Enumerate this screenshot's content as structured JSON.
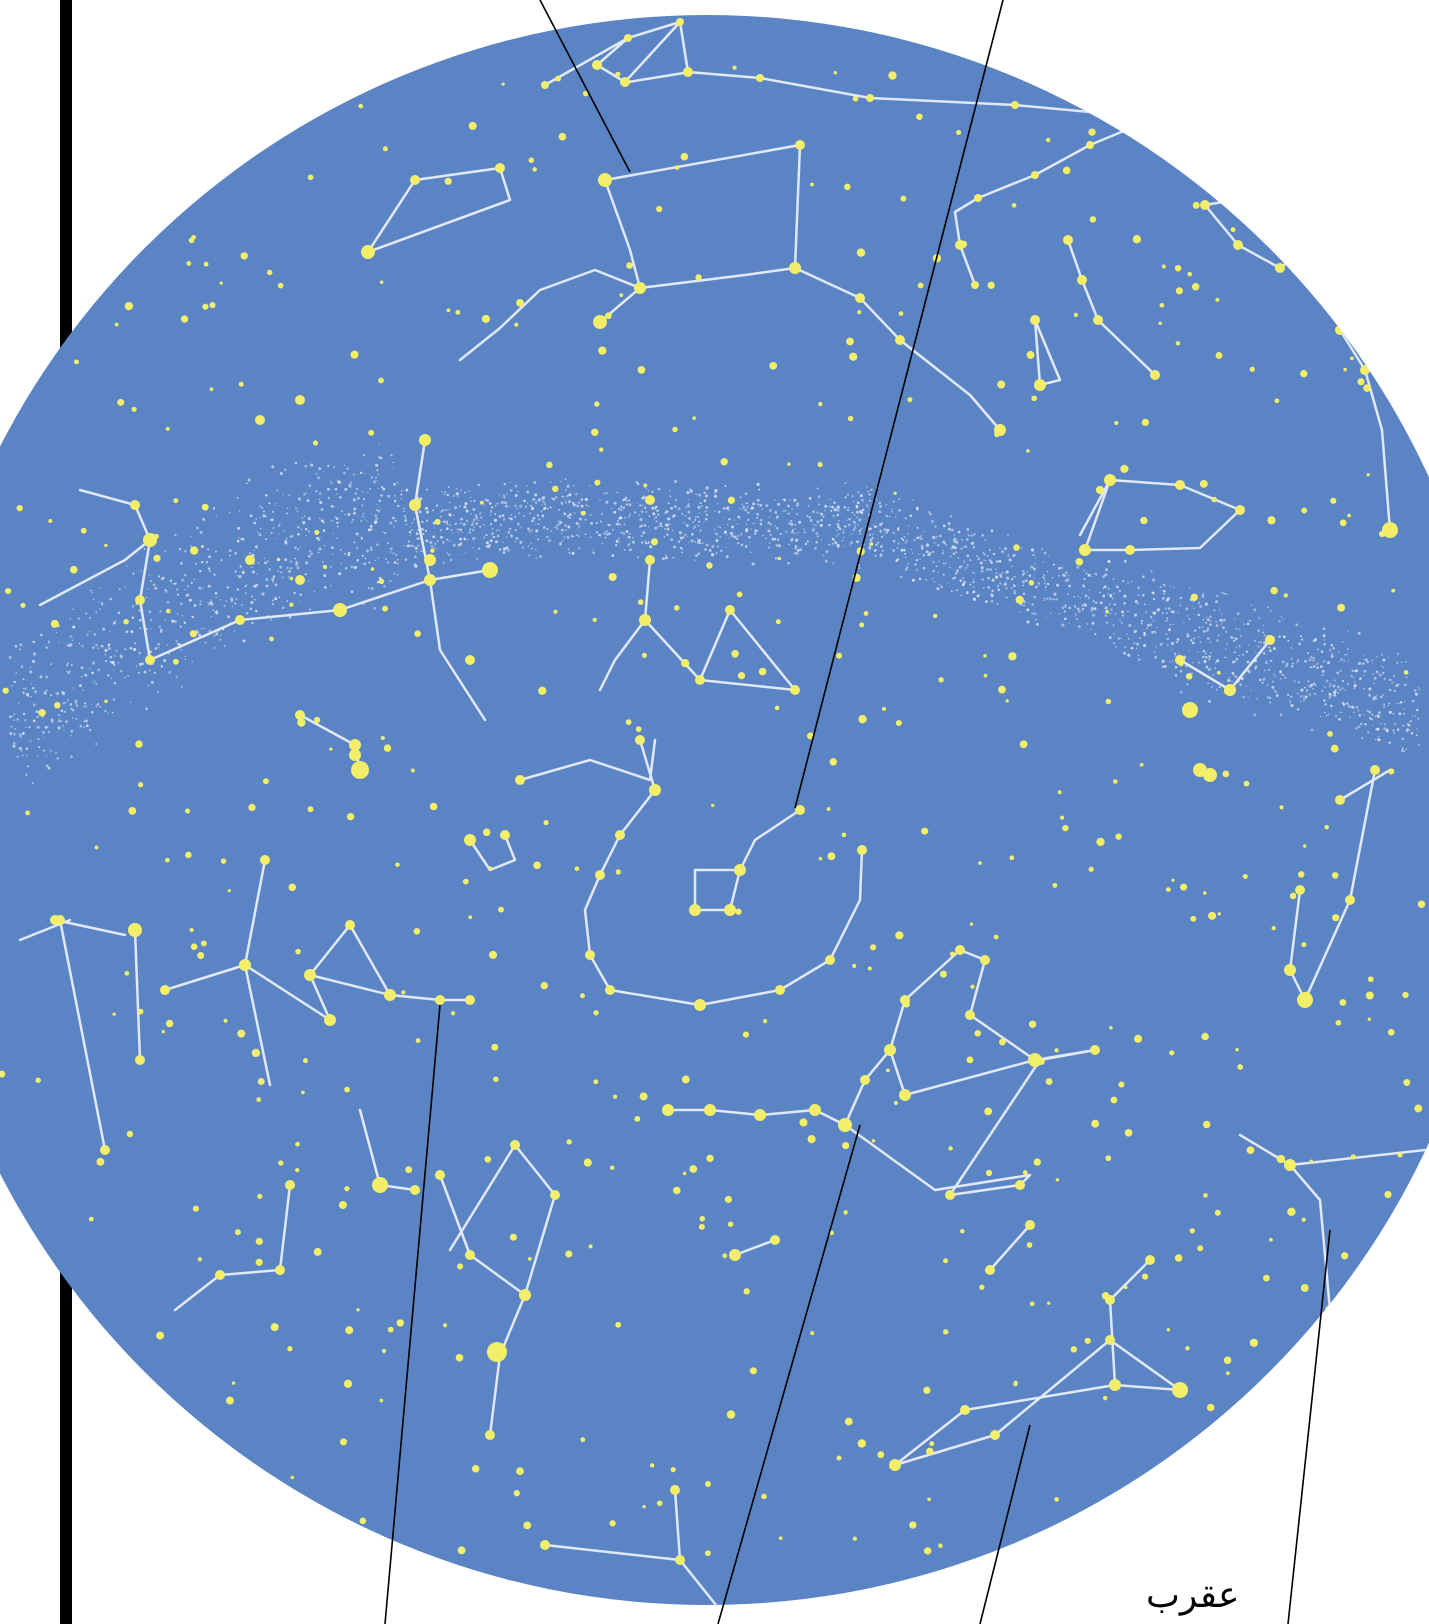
{
  "labels": {
    "scorpius": "عقرب"
  },
  "colors": {
    "background": "#ffffff",
    "sky_disc": "#5a84c4",
    "star": "#f3ee6a",
    "constellation_line": "#e2e8f6",
    "milky_way": "#dfe6f5",
    "leader_line": "#000000",
    "border_bar": "#000000"
  },
  "icons": [
    "star-chart-disc",
    "constellation-lines",
    "milky-way-band",
    "leader-lines"
  ]
}
